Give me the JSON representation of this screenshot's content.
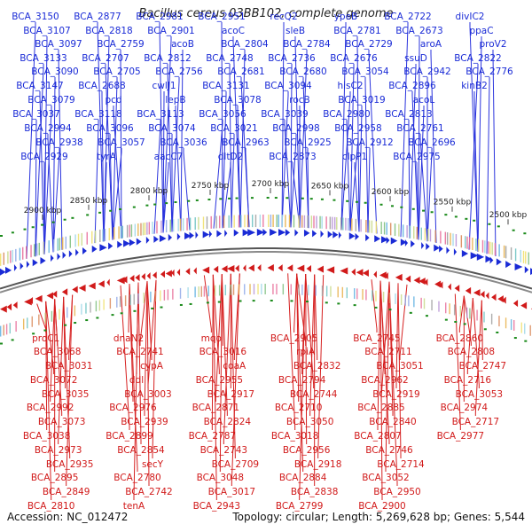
{
  "title": "Bacillus cereus 03BB102, complete genome",
  "footer": {
    "accession": "Accession: NC_012472",
    "summary": "Topology: circular; Length: 5,269,628 bp; Genes: 5,544"
  },
  "colors": {
    "forward": "#1a2bd6",
    "reverse": "#d11a1a",
    "backbone": "#8a8a8a",
    "gc_marks": "#1a8a1a"
  },
  "ticks": [
    "2900 kbp",
    "2850 kbp",
    "2800 kbp",
    "2750 kbp",
    "2700 kbp",
    "2650 kbp",
    "2600 kbp",
    "2550 kbp",
    "2500 kbp"
  ],
  "top_genes": [
    "BCA_3150",
    "BCA_3107",
    "BCA_3097",
    "BCA_3133",
    "BCA_3090",
    "BCA_3147",
    "BCA_3079",
    "BCA_3037",
    "BCA_2994",
    "BCA_2938",
    "BCA_2929",
    "BCA_2877",
    "BCA_2818",
    "BCA_2759",
    "BCA_2707",
    "BCA_2705",
    "BCA_2688",
    "pcd",
    "BCA_3118",
    "BCA_3096",
    "BCA_3057",
    "tyrA",
    "BCA_2981",
    "BCA_2901",
    "acoB",
    "BCA_2812",
    "BCA_2756",
    "cwlJ1",
    "lepB",
    "BCA_3113",
    "BCA_3074",
    "BCA_3036",
    "aacC7",
    "BCA_2951",
    "acoC",
    "BCA_2804",
    "BCA_2748",
    "BCA_2681",
    "BCA_3131",
    "BCA_3078",
    "BCA_3056",
    "BCA_3021",
    "BCA_2963",
    "dltD2",
    "recQ2",
    "sleB",
    "BCA_2784",
    "BCA_2736",
    "BCA_2680",
    "BCA_3094",
    "rocB",
    "BCA_3039",
    "BCA_2998",
    "BCA_2925",
    "BCA_2873",
    "ypeB",
    "BCA_2781",
    "BCA_2729",
    "BCA_2676",
    "BCA_3054",
    "hisC2",
    "BCA_3019",
    "BCA_2980",
    "BCA_2958",
    "BCA_2912",
    "clpP1",
    "BCA_2722",
    "BCA_2673",
    "aroA",
    "ssuD",
    "BCA_2942",
    "BCA_2896",
    "acoL",
    "BCA_2813",
    "BCA_2761",
    "BCA_2696",
    "BCA_2975",
    "divIC2",
    "ppaC",
    "proV2",
    "BCA_2822",
    "BCA_2776",
    "kinB2"
  ],
  "bottom_genes": [
    "proC1",
    "BCA_3068",
    "BCA_3031",
    "BCA_3072",
    "BCA_3035",
    "BCA_2992",
    "BCA_3073",
    "BCA_3038",
    "BCA_2973",
    "BCA_2935",
    "BCA_2895",
    "BCA_2849",
    "BCA_2810",
    "dnaN2",
    "BCA_2741",
    "cypA",
    "ddl",
    "BCA_3003",
    "BCA_2976",
    "BCA_2939",
    "BCA_2899",
    "BCA_2854",
    "secY",
    "BCA_2780",
    "BCA_2742",
    "tenA",
    "mqo",
    "BCA_3016",
    "coaA",
    "BCA_2955",
    "BCA_2917",
    "BCA_2871",
    "BCA_2824",
    "BCA_2787",
    "BCA_2743",
    "BCA_2709",
    "BCA_3048",
    "BCA_3017",
    "BCA_2943",
    "BCA_2905",
    "rpiA",
    "BCA_2832",
    "BCA_2794",
    "BCA_2744",
    "BCA_2710",
    "BCA_3050",
    "BCA_3018",
    "BCA_2956",
    "BCA_2918",
    "BCA_2884",
    "BCA_2838",
    "BCA_2799",
    "BCA_2745",
    "BCA_2711",
    "BCA_3051",
    "BCA_2962",
    "BCA_2919",
    "BCA_2885",
    "BCA_2840",
    "BCA_2807",
    "BCA_2746",
    "BCA_2714",
    "BCA_3052",
    "BCA_2950",
    "BCA_2900",
    "BCA_2860",
    "BCA_2808",
    "BCA_2747",
    "BCA_2716",
    "BCA_3053",
    "BCA_2974",
    "BCA_2717",
    "BCA_2977"
  ]
}
